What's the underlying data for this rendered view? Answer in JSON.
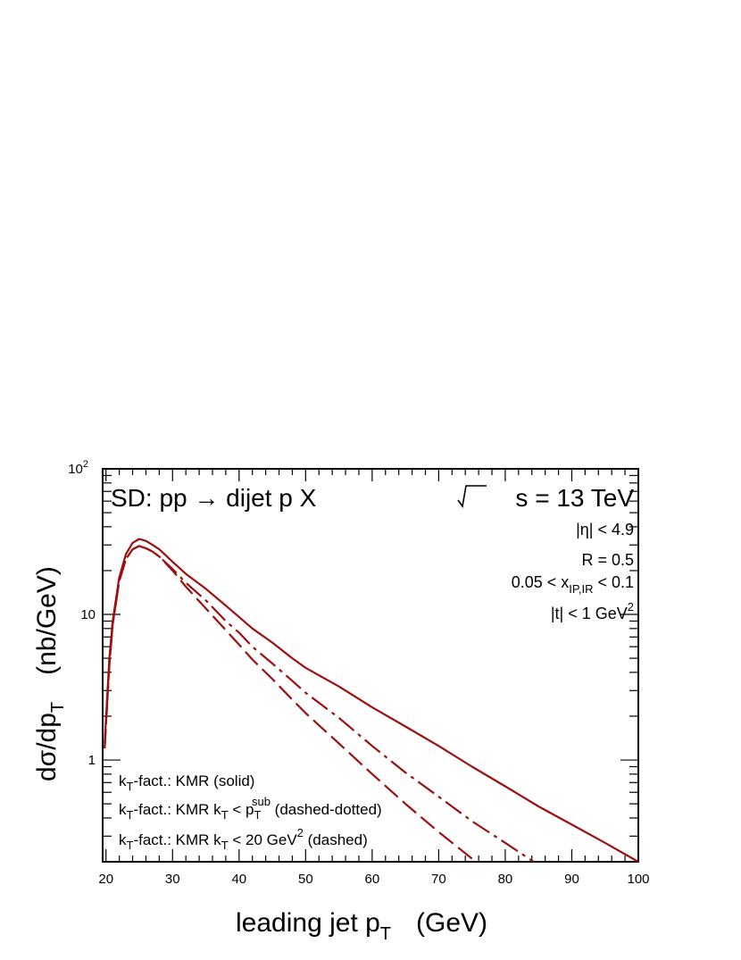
{
  "chart_data": {
    "type": "line",
    "title": "SD: pp → dijet p X",
    "energy": {
      "prefix": "s",
      "value": " = 13 TeV"
    },
    "cuts": [
      {
        "main": "|η| < 4.9"
      },
      {
        "main": "R = 0.5"
      },
      {
        "main": "0.05 < x",
        "sub": "IP,IR",
        "tail": " < 0.1"
      },
      {
        "main": "|t| < 1 GeV",
        "sup": "2"
      }
    ],
    "xlabel": {
      "main": "leading jet p",
      "sub": "T",
      "unit": "(GeV)"
    },
    "ylabel": {
      "main": "dσ/dp",
      "sub": "T",
      "unit": "(nb/GeV)"
    },
    "xlim": [
      19.5,
      100
    ],
    "ylim": [
      0.2,
      100
    ],
    "yscale": "log",
    "x_ticks": [
      "20",
      "30",
      "40",
      "50",
      "60",
      "70",
      "80",
      "90",
      "100"
    ],
    "y_ticks": [
      {
        "value": 1,
        "label": "1"
      },
      {
        "value": 10,
        "label": "10"
      },
      {
        "value": 100,
        "label": "10",
        "sup": "2"
      }
    ],
    "color": "#9b1010",
    "legend": {
      "placement": "bottom-left",
      "entries": [
        {
          "p1": "k",
          "s1": "T",
          "p2": "-fact.: KMR (solid)"
        },
        {
          "p1": "k",
          "s1": "T",
          "p2": "-fact.: KMR k",
          "s2": "T",
          "p3": " < p",
          "s3": "T",
          "sup3": "sub",
          "p4": " (dashed-dotted)"
        },
        {
          "p1": "k",
          "s1": "T",
          "p2": "-fact.: KMR k",
          "s2": "T",
          "p3": " < 20 GeV",
          "sup3": "2",
          "p4": " (dashed)"
        }
      ]
    },
    "series": [
      {
        "style": "solid",
        "x": [
          19.8,
          20.5,
          21,
          22,
          23,
          24,
          25,
          26,
          27,
          28,
          30,
          32,
          35,
          38,
          40,
          42,
          45,
          48,
          50,
          55,
          60,
          65,
          70,
          75,
          80,
          85,
          90,
          95,
          100
        ],
        "y": [
          1.3,
          5,
          9,
          18,
          26,
          31,
          33,
          32,
          30,
          28,
          23,
          19,
          15,
          11.5,
          9.6,
          8,
          6.4,
          5,
          4.3,
          3.2,
          2.3,
          1.7,
          1.25,
          0.9,
          0.66,
          0.48,
          0.36,
          0.27,
          0.2
        ]
      },
      {
        "style": "dashdot",
        "x": [
          19.8,
          20.5,
          21,
          22,
          23,
          24,
          25,
          26,
          27,
          28,
          30,
          32,
          35,
          38,
          40,
          42,
          45,
          48,
          50,
          55,
          60,
          65,
          70,
          75,
          80,
          85,
          87
        ],
        "y": [
          1.2,
          4.5,
          8.5,
          17,
          24,
          28,
          29.5,
          28.5,
          27,
          25,
          20.5,
          16.5,
          12.5,
          9,
          7.5,
          6,
          4.6,
          3.5,
          2.9,
          1.95,
          1.25,
          0.82,
          0.56,
          0.38,
          0.27,
          0.19,
          0.165
        ]
      },
      {
        "style": "dashed",
        "x": [
          19.8,
          20.5,
          21,
          22,
          23,
          24,
          25,
          26,
          27,
          28,
          30,
          32,
          35,
          38,
          40,
          42,
          45,
          48,
          50,
          55,
          60,
          65,
          70,
          75,
          77
        ],
        "y": [
          1.2,
          4.5,
          8.5,
          17,
          24,
          28,
          29.5,
          28.5,
          27,
          25,
          20,
          15.5,
          11,
          7.8,
          6.2,
          4.9,
          3.6,
          2.6,
          2.1,
          1.3,
          0.8,
          0.5,
          0.32,
          0.21,
          0.18
        ]
      }
    ]
  }
}
